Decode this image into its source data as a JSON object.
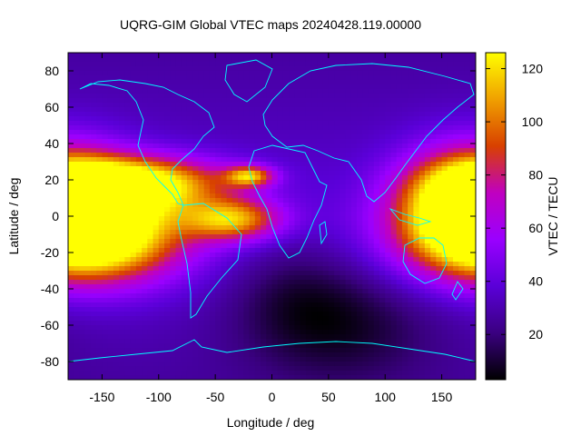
{
  "chart_data": {
    "type": "heatmap",
    "title": "UQRG-GIM Global VTEC maps 20240428.119.00000",
    "xlabel": "Longitude / deg",
    "ylabel": "Latitude / deg",
    "colorbar_label": "VTEC / TECU",
    "xlim": [
      -180,
      180
    ],
    "ylim": [
      -90,
      90
    ],
    "xticks": [
      -150,
      -100,
      -50,
      0,
      50,
      100,
      150
    ],
    "yticks": [
      -80,
      -60,
      -40,
      -20,
      0,
      20,
      40,
      60,
      80
    ],
    "clim": [
      3,
      126
    ],
    "cbticks": [
      20,
      40,
      60,
      80,
      100,
      120
    ],
    "colormap": [
      "#000000",
      "#3a0080",
      "#5a00d8",
      "#9a00ff",
      "#c000c0",
      "#d84000",
      "#f0a000",
      "#ffff00"
    ],
    "coastline_color": "#00ffff",
    "features": [
      {
        "lon": -160,
        "lat": -10,
        "peak": 122,
        "slon": 55,
        "slat": 18
      },
      {
        "lon": -120,
        "lat": 18,
        "peak": 92,
        "slon": 55,
        "slat": 10
      },
      {
        "lon": -35,
        "lat": -2,
        "peak": 72,
        "slon": 30,
        "slat": 8
      },
      {
        "lon": -20,
        "lat": 22,
        "peak": 70,
        "slon": 15,
        "slat": 4
      },
      {
        "lon": 175,
        "lat": 10,
        "peak": 88,
        "slon": 40,
        "slat": 20
      },
      {
        "lon": 60,
        "lat": -60,
        "peak": -22,
        "slon": 60,
        "slat": 22
      },
      {
        "lon": 20,
        "lat": -40,
        "peak": -12,
        "slon": 40,
        "slat": 20
      }
    ],
    "grid": false
  }
}
